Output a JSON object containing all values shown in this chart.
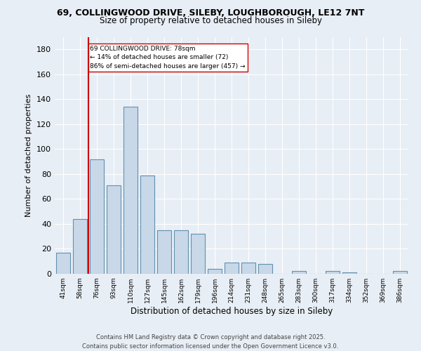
{
  "title1": "69, COLLINGWOOD DRIVE, SILEBY, LOUGHBOROUGH, LE12 7NT",
  "title2": "Size of property relative to detached houses in Sileby",
  "xlabel": "Distribution of detached houses by size in Sileby",
  "ylabel": "Number of detached properties",
  "categories": [
    "41sqm",
    "58sqm",
    "76sqm",
    "93sqm",
    "110sqm",
    "127sqm",
    "145sqm",
    "162sqm",
    "179sqm",
    "196sqm",
    "214sqm",
    "231sqm",
    "248sqm",
    "265sqm",
    "283sqm",
    "300sqm",
    "317sqm",
    "334sqm",
    "352sqm",
    "369sqm",
    "386sqm"
  ],
  "values": [
    17,
    44,
    92,
    71,
    134,
    79,
    35,
    35,
    32,
    4,
    9,
    9,
    8,
    0,
    2,
    0,
    2,
    1,
    0,
    0,
    2
  ],
  "bar_color": "#c8d8e8",
  "bar_edge_color": "#6090b0",
  "property_line_bin": 2,
  "property_line_color": "#cc0000",
  "annotation_text": "69 COLLINGWOOD DRIVE: 78sqm\n← 14% of detached houses are smaller (72)\n86% of semi-detached houses are larger (457) →",
  "annotation_box_color": "#ffffff",
  "annotation_box_edge_color": "#cc0000",
  "ylim": [
    0,
    190
  ],
  "yticks": [
    0,
    20,
    40,
    60,
    80,
    100,
    120,
    140,
    160,
    180
  ],
  "footer1": "Contains HM Land Registry data © Crown copyright and database right 2025.",
  "footer2": "Contains public sector information licensed under the Open Government Licence v3.0.",
  "background_color": "#e8eef5",
  "plot_background_color": "#e8eef5"
}
